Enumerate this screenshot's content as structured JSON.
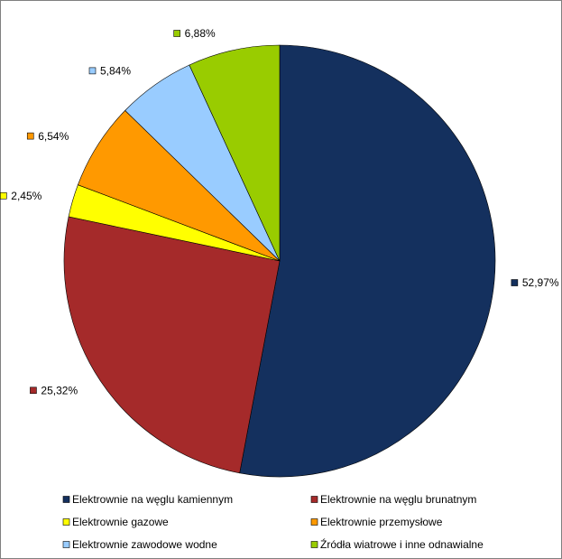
{
  "chart_data": {
    "type": "pie",
    "categories": [
      "Elektrownie na węglu kamiennym",
      "Elektrownie na węglu brunatnym",
      "Elektrownie gazowe",
      "Elektrownie przemysłowe",
      "Elektrownie zawodowe wodne",
      "Źródła wiatrowe i inne odnawialne"
    ],
    "values": [
      52.97,
      25.32,
      2.45,
      6.54,
      5.84,
      6.88
    ],
    "value_labels": [
      "52,97%",
      "25,32%",
      "2,45%",
      "6,54%",
      "5,84%",
      "6,88%"
    ],
    "colors": [
      "#14305e",
      "#a52a2a",
      "#ffff00",
      "#ff9900",
      "#99ccff",
      "#99cc00"
    ],
    "legend": "bottom"
  }
}
